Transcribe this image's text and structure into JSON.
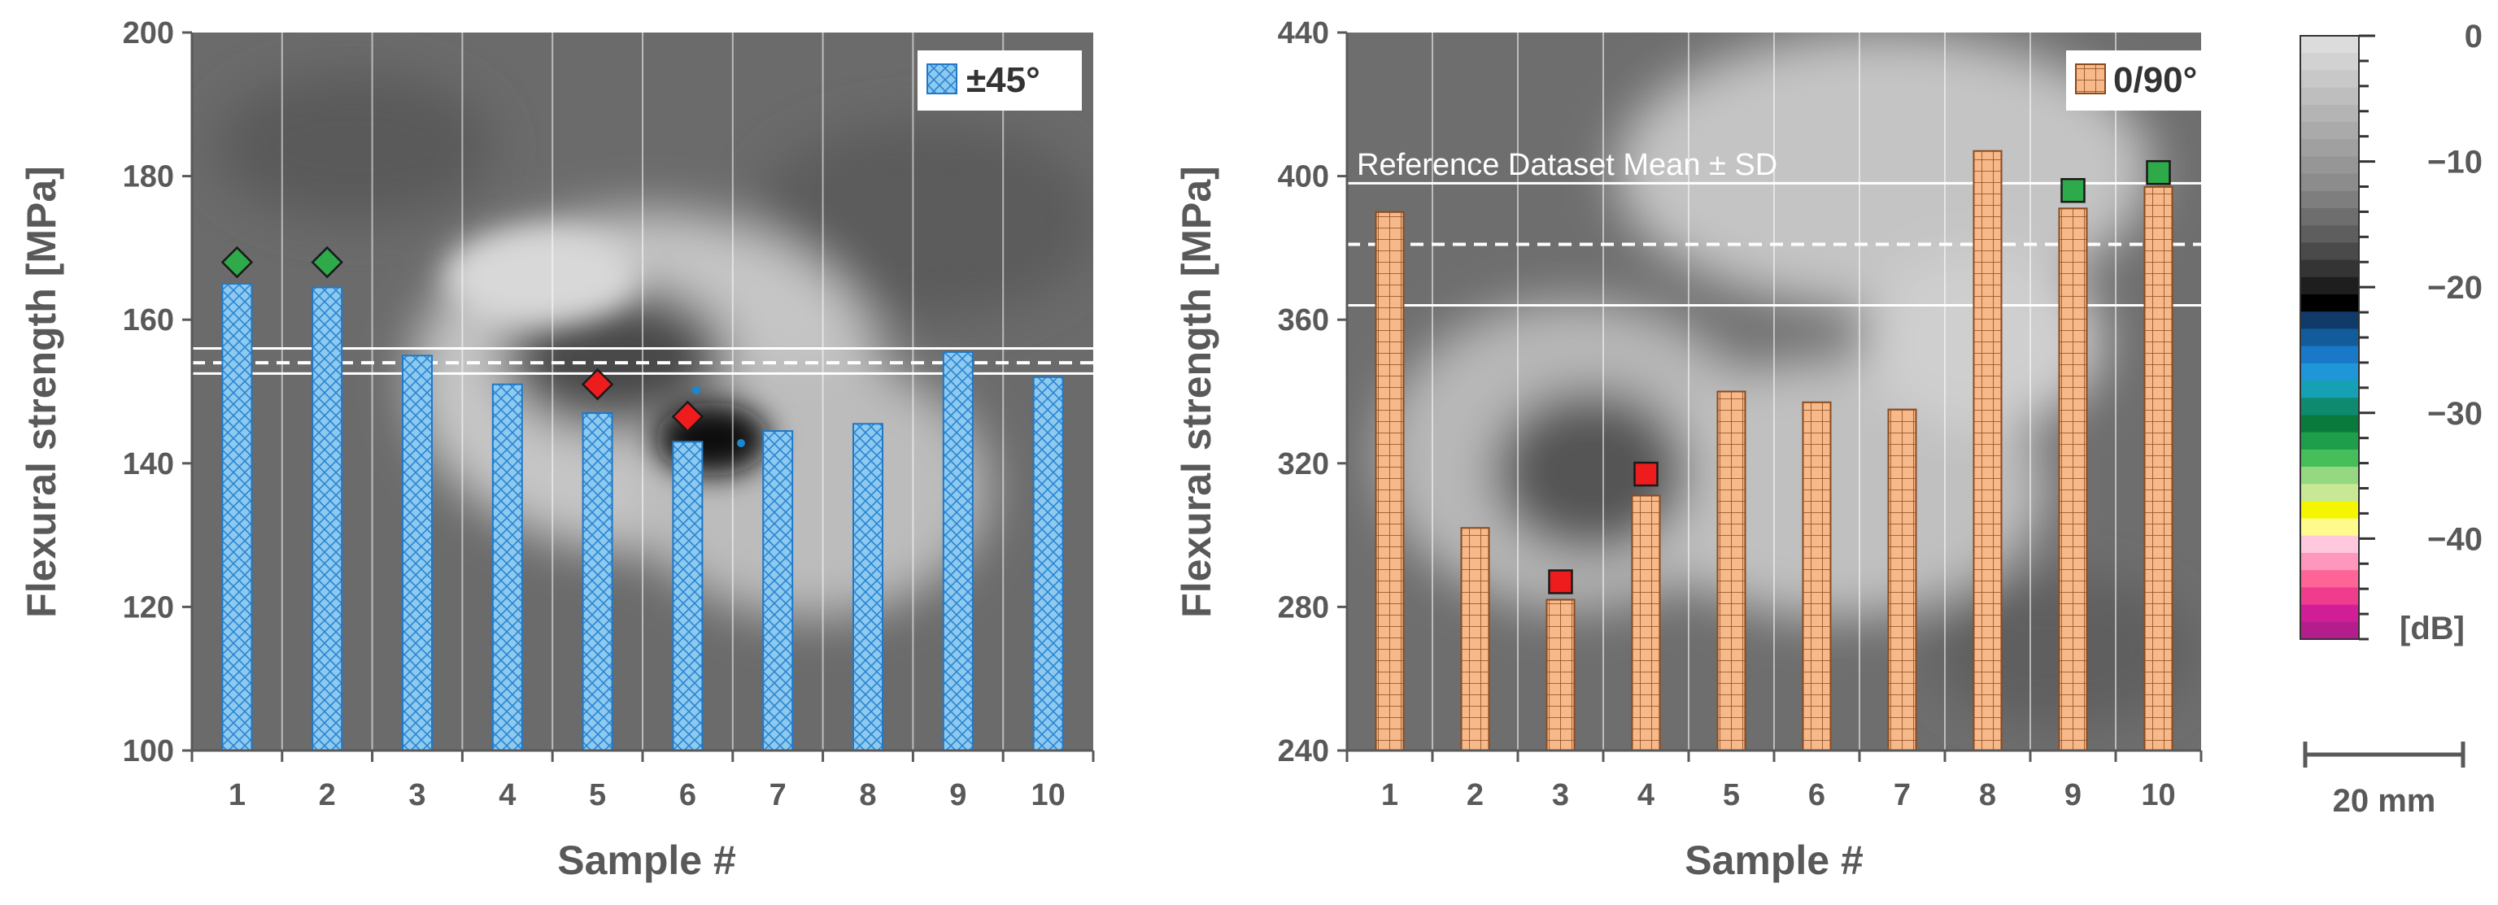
{
  "colors": {
    "bar_left_fill": "#8ec9ef",
    "bar_left_stroke": "#1f78c8",
    "bar_right_fill": "#f7b98a",
    "bar_right_stroke": "#8a4a1e",
    "marker_green": "#2eaa4a",
    "marker_red": "#ee1c1c",
    "background_scan": "#6e6e6e",
    "reference_line": "#ffffff",
    "axis_text": "#595959"
  },
  "chart_data": [
    {
      "type": "bar",
      "legend": "±45°",
      "xlabel": "Sample #",
      "ylabel": "Flexural strength  [MPa]",
      "categories": [
        "1",
        "2",
        "3",
        "4",
        "5",
        "6",
        "7",
        "8",
        "9",
        "10"
      ],
      "values": [
        165,
        164.5,
        155,
        151,
        147,
        143,
        144.5,
        145.5,
        155.5,
        152
      ],
      "ylim": [
        100,
        200
      ],
      "yticks": [
        100,
        120,
        140,
        160,
        180,
        200
      ],
      "reference": {
        "mean": 154,
        "upper": 156,
        "lower": 152.5
      },
      "markers": [
        {
          "sample": "1",
          "value": 168,
          "shape": "diamond",
          "color": "green"
        },
        {
          "sample": "2",
          "value": 168,
          "shape": "diamond",
          "color": "green"
        },
        {
          "sample": "5",
          "value": 151,
          "shape": "diamond",
          "color": "red"
        },
        {
          "sample": "6",
          "value": 146.5,
          "shape": "diamond",
          "color": "red"
        }
      ],
      "grid": "vertical"
    },
    {
      "type": "bar",
      "legend": "0/90°",
      "xlabel": "Sample #",
      "ylabel": "Flexural strength  [MPa]",
      "categories": [
        "1",
        "2",
        "3",
        "4",
        "5",
        "6",
        "7",
        "8",
        "9",
        "10"
      ],
      "values": [
        390,
        302,
        282,
        311,
        340,
        337,
        335,
        407,
        391,
        397
      ],
      "ylim": [
        240,
        440
      ],
      "yticks": [
        240,
        280,
        320,
        360,
        400,
        440
      ],
      "reference": {
        "label": "Reference Dataset  Mean ± SD",
        "mean": 381,
        "upper": 398,
        "lower": 364
      },
      "markers": [
        {
          "sample": "3",
          "value": 287,
          "shape": "square",
          "color": "red"
        },
        {
          "sample": "4",
          "value": 317,
          "shape": "square",
          "color": "red"
        },
        {
          "sample": "9",
          "value": 396,
          "shape": "square",
          "color": "green"
        },
        {
          "sample": "10",
          "value": 401,
          "shape": "square",
          "color": "green"
        }
      ],
      "grid": "vertical"
    }
  ],
  "colorbar": {
    "tick_labels": [
      "0",
      "−10",
      "−20",
      "−30",
      "−40"
    ],
    "tick_values": [
      0,
      -10,
      -20,
      -30,
      -40
    ],
    "range": [
      0,
      -48
    ],
    "unit": "[dB]",
    "colors": [
      "#dcdcdc",
      "#d2d2d2",
      "#c8c8c8",
      "#bebebe",
      "#b4b4b4",
      "#aaaaaa",
      "#a0a0a0",
      "#969696",
      "#8c8c8c",
      "#7e7e7e",
      "#6e6e6e",
      "#5e5e5e",
      "#4a4a4a",
      "#343434",
      "#1e1e1e",
      "#000000",
      "#103a6a",
      "#135c9c",
      "#1a78c8",
      "#1e96d8",
      "#16a0b4",
      "#0e8a6e",
      "#0a7a3c",
      "#1e9e4a",
      "#46be5a",
      "#96d882",
      "#c8e896",
      "#f5f500",
      "#fffa8c",
      "#ffc8dc",
      "#ff96be",
      "#ff6496",
      "#f03c8c",
      "#d21e96",
      "#b41e8c"
    ]
  },
  "scale_bar": {
    "label": "20 mm"
  }
}
